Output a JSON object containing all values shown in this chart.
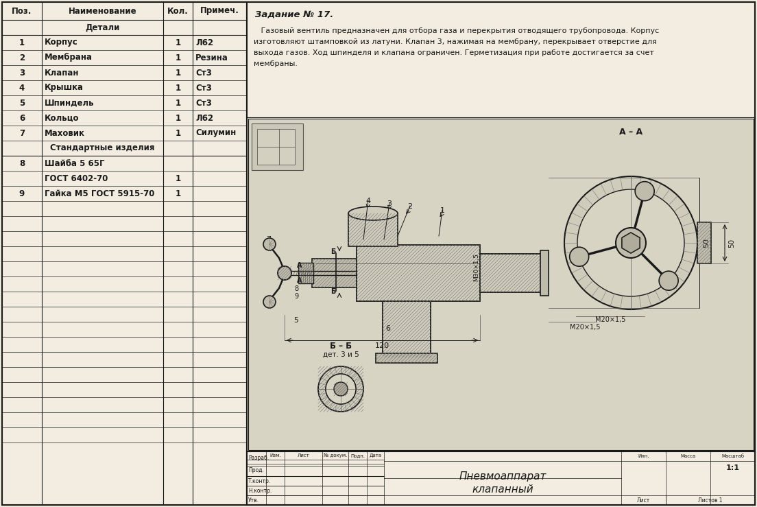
{
  "task_title": "Задание № 17.",
  "task_text_lines": [
    "   Газовый вентиль предназначен для отбора газа и перекрытия отводящего трубопровода. Корпус",
    "изготовляют штамповкой из латуни. Клапан 3, нажимая на мембрану, перекрывает отверстие для",
    "выхода газов. Ход шпинделя и клапана ограничен. Герметизация при работе достигается за счет",
    "мембраны."
  ],
  "table_header": [
    "Поз.",
    "Наименование",
    "Кол.",
    "Примеч."
  ],
  "section_detali": "Детали",
  "section_standart": "Стандартные изделия",
  "rows": [
    {
      "pos": "1",
      "name": "Корпус",
      "kol": "1",
      "prim": "Л62"
    },
    {
      "pos": "2",
      "name": "Мембрана",
      "kol": "1",
      "prim": "Резина"
    },
    {
      "pos": "3",
      "name": "Клапан",
      "kol": "1",
      "prim": "Ст3"
    },
    {
      "pos": "4",
      "name": "Крышка",
      "kol": "1",
      "prim": "Ст3"
    },
    {
      "pos": "5",
      "name": "Шпиндель",
      "kol": "1",
      "prim": "Ст3"
    },
    {
      "pos": "6",
      "name": "Кольцо",
      "kol": "1",
      "prim": "Л62"
    },
    {
      "pos": "7",
      "name": "Маховик",
      "kol": "1",
      "prim": "Силумин"
    },
    {
      "pos": "8",
      "name": "Шайба 5 65Г",
      "kol": "",
      "prim": ""
    },
    {
      "pos": "",
      "name": "ГОСТ 6402-70",
      "kol": "1",
      "prim": ""
    },
    {
      "pos": "9",
      "name": "Гайка М5 ГОСТ 5915-70",
      "kol": "1",
      "prim": ""
    }
  ],
  "empty_rows": 16,
  "bg_color": "#f2ede0",
  "drawing_bg": "#d8d4c4",
  "tb_name1": "Пневмоаппарат",
  "tb_name2": "клапанный",
  "tb_scale": "1:1",
  "tb_row_labels": [
    "Разраб.",
    "Прод.",
    "Т.контр.",
    "Н.контр.",
    "Утв."
  ],
  "tb_col_headers": [
    "Изм.",
    "Лист",
    "№ докум.",
    "Подп.",
    "Дата"
  ],
  "tb_right_headers": [
    "Инн.",
    "Масса",
    "Масштаб"
  ],
  "tb_sheet": "Лист",
  "tb_sheets": "Листов 1"
}
